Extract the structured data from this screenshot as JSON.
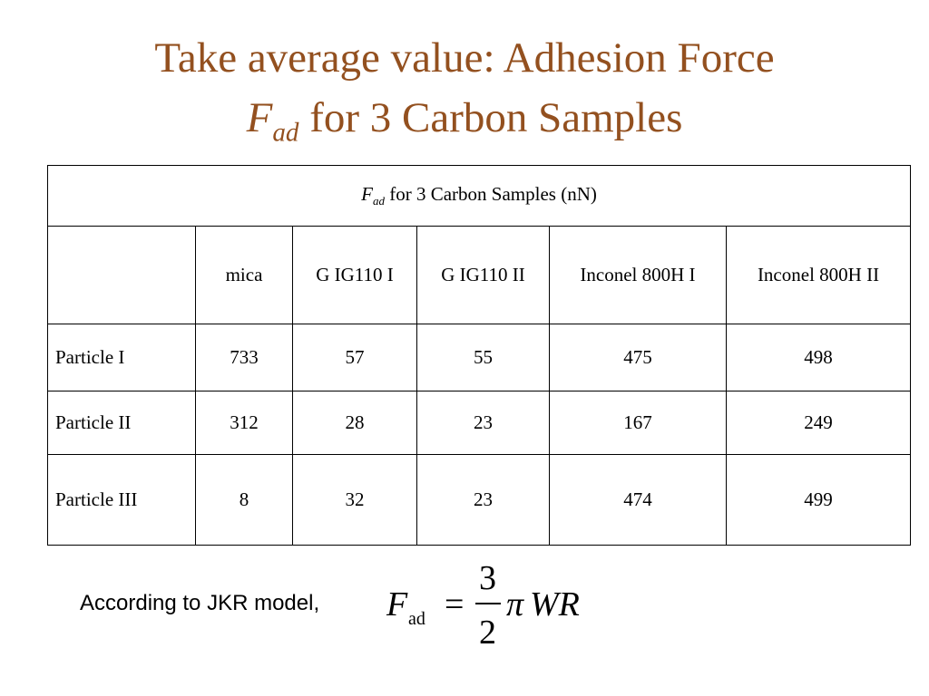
{
  "title": {
    "line1": "Take average value: Adhesion Force",
    "symbol": "F",
    "subscript": "ad",
    "rest": "for 3  Carbon Samples"
  },
  "table": {
    "caption": {
      "symbol": "F",
      "subscript": "ad",
      "rest": "for 3  Carbon Samples (nN)"
    },
    "columns": [
      "mica",
      "G IG110 I",
      "G IG110 II",
      "Inconel 800H I",
      "Inconel 800H II"
    ],
    "rows": [
      {
        "label": "Particle I",
        "values": [
          733,
          57,
          55,
          475,
          498
        ]
      },
      {
        "label": "Particle II",
        "values": [
          312,
          28,
          23,
          167,
          249
        ]
      },
      {
        "label": "Particle III",
        "values": [
          8,
          32,
          23,
          474,
          499
        ]
      }
    ]
  },
  "formula": {
    "intro": "According to JKR model,",
    "symbol": "F",
    "subscript": "ad",
    "equals": "=",
    "numerator": "3",
    "denominator": "2",
    "pi": "π",
    "rest": "WR"
  }
}
